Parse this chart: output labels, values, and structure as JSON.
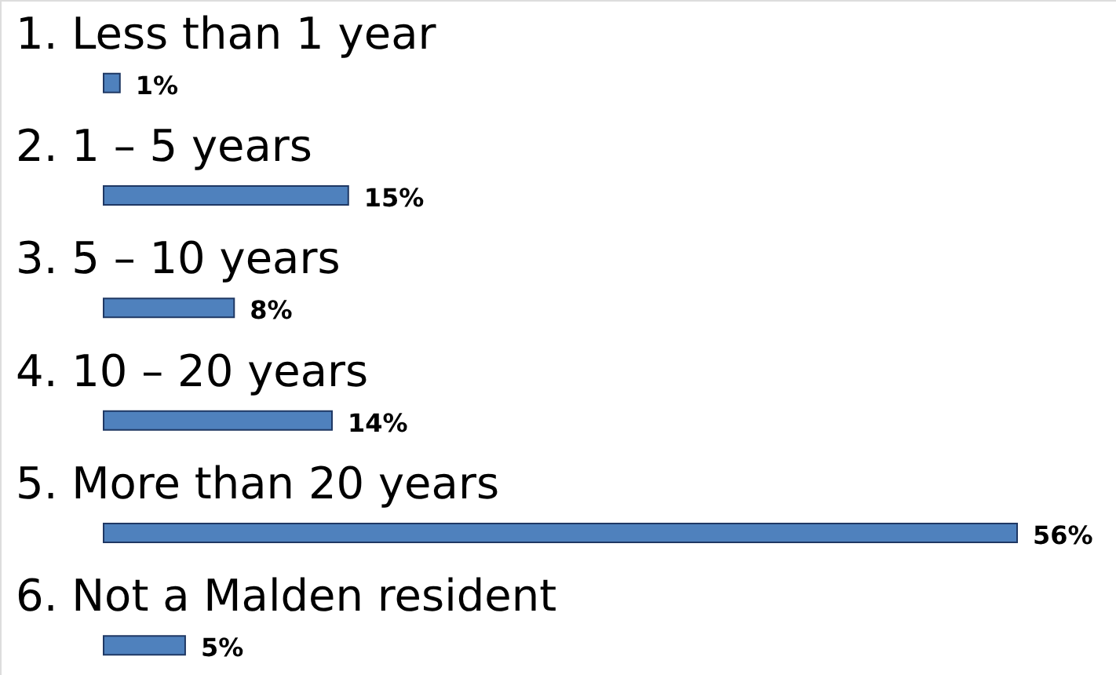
{
  "chart_data": {
    "type": "bar",
    "orientation": "horizontal",
    "categories": [
      "1. Less than 1 year",
      "2. 1 – 5 years",
      "3. 5 – 10 years",
      "4. 10 – 20 years",
      "5. More than 20 years",
      "6. Not a Malden resident"
    ],
    "values": [
      1,
      15,
      8,
      14,
      56,
      5
    ],
    "value_labels": [
      "1%",
      "15%",
      "8%",
      "14%",
      "56%",
      "5%"
    ],
    "color": "#4f81bd"
  }
}
